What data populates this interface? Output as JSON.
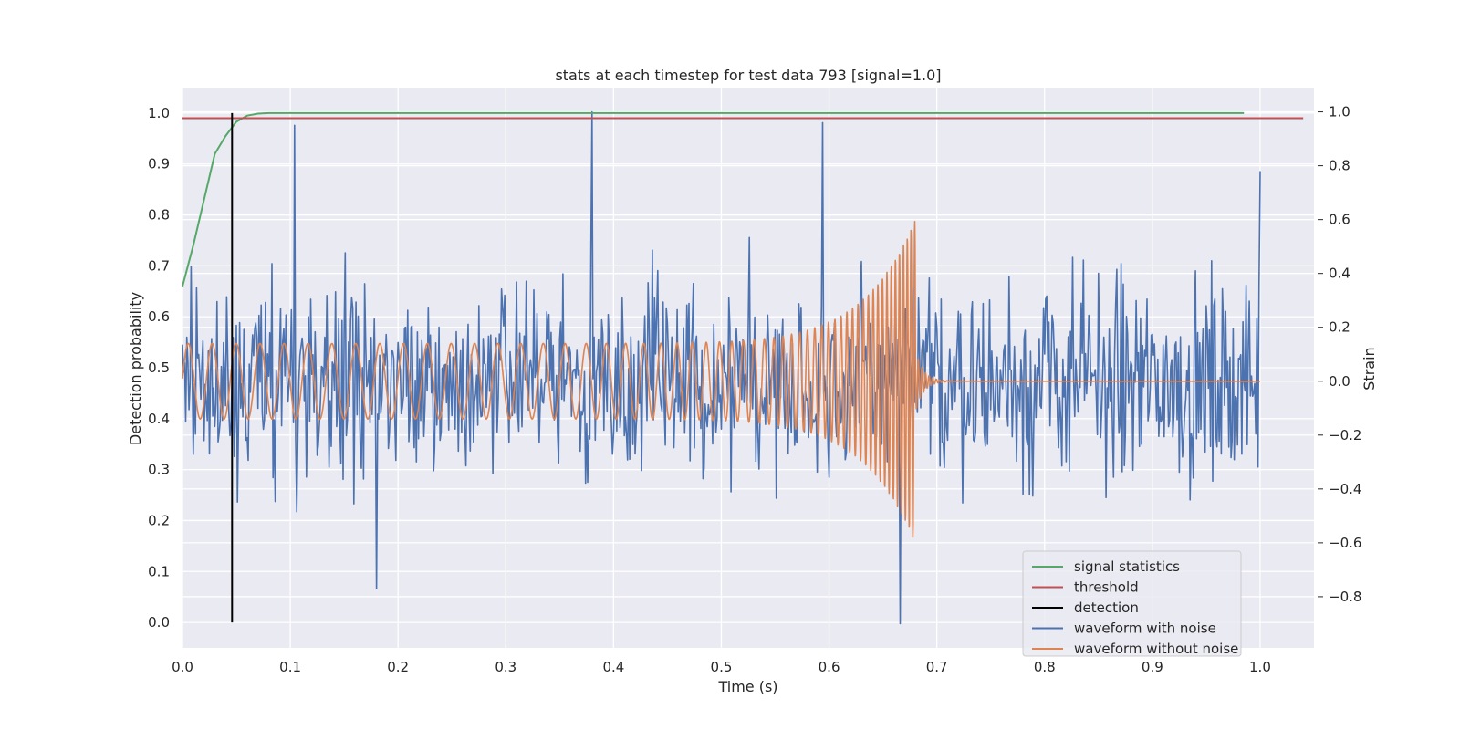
{
  "chart_data": {
    "type": "line",
    "title": "stats at each timestep for test data 793 [signal=1.0]",
    "xlabel": "Time (s)",
    "ylabel": "Detection probability",
    "y2label": "Strain",
    "xlim": [
      0.0,
      1.05
    ],
    "ylim": [
      -0.05,
      1.05
    ],
    "y2lim": [
      -0.99,
      1.09
    ],
    "xticks": [
      "0.0",
      "0.1",
      "0.2",
      "0.3",
      "0.4",
      "0.5",
      "0.6",
      "0.7",
      "0.8",
      "0.9",
      "1.0"
    ],
    "yticks": [
      "0.0",
      "0.1",
      "0.2",
      "0.3",
      "0.4",
      "0.5",
      "0.6",
      "0.7",
      "0.8",
      "0.9",
      "1.0"
    ],
    "y2ticks": [
      "−0.8",
      "−0.6",
      "−0.4",
      "−0.2",
      "0.0",
      "0.2",
      "0.4",
      "0.6",
      "0.8",
      "1.0"
    ],
    "grid": true,
    "legend_position": "bottom-right",
    "colors": {
      "signal_statistics": "#55a868",
      "threshold": "#c44e52",
      "detection": "#000000",
      "waveform_with_noise": "#4c72b0",
      "waveform_without_noise": "#dd8452",
      "plot_background": "#eaeaf2"
    },
    "series": [
      {
        "name": "signal statistics",
        "axis": "left",
        "x": [
          0.0,
          0.01,
          0.02,
          0.03,
          0.04,
          0.05,
          0.06,
          0.07,
          0.08,
          0.1,
          0.2,
          0.4,
          0.6,
          0.8,
          0.985
        ],
        "y": [
          0.66,
          0.74,
          0.83,
          0.92,
          0.955,
          0.983,
          0.995,
          0.999,
          1.0,
          1.0,
          1.0,
          1.0,
          1.0,
          1.0,
          1.0
        ]
      },
      {
        "name": "threshold",
        "axis": "left",
        "x": [
          0.0,
          1.04
        ],
        "y": [
          0.99,
          0.99
        ]
      },
      {
        "name": "detection",
        "axis": "left",
        "x": [
          0.046,
          0.046
        ],
        "y": [
          0.0,
          1.0
        ]
      },
      {
        "name": "waveform with noise",
        "axis": "right",
        "description_range": [
          -0.9,
          1.0
        ],
        "x_range": [
          0.0,
          1.0
        ],
        "amplitude": 0.3,
        "peaks": [
          {
            "x": 0.104,
            "y": 0.95
          },
          {
            "x": 0.38,
            "y": 1.0
          },
          {
            "x": 0.594,
            "y": 0.96
          },
          {
            "x": 0.666,
            "y": -0.9
          },
          {
            "x": 0.18,
            "y": -0.77
          },
          {
            "x": 1.0,
            "y": 0.78
          }
        ]
      },
      {
        "name": "waveform without noise",
        "axis": "right",
        "x_range": [
          0.0,
          1.0
        ],
        "chirp_end": 0.68,
        "start_amplitude": 0.14,
        "peak_amplitude": 0.6,
        "start_frequency": 45,
        "end_frequency": 300
      }
    ]
  }
}
